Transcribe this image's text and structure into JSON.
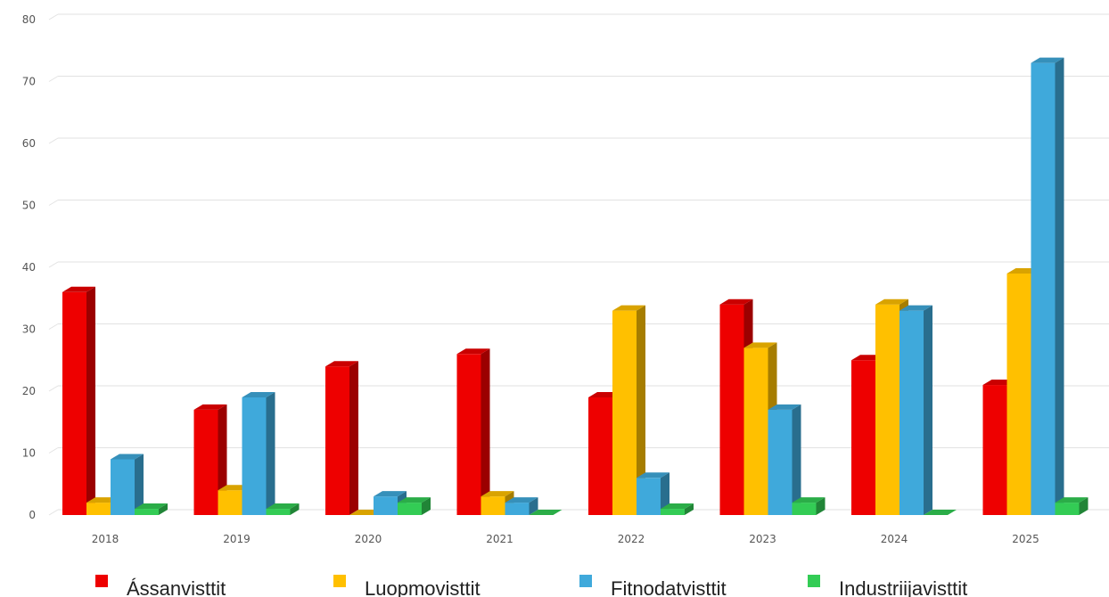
{
  "chart_data": {
    "type": "bar",
    "style": "3d-clustered",
    "categories": [
      "2018",
      "2019",
      "2020",
      "2021",
      "2022",
      "2023",
      "2024",
      "2025"
    ],
    "series": [
      {
        "name": "Ássanvisttit",
        "color": "#ee0000",
        "values": [
          36,
          17,
          24,
          26,
          19,
          34,
          25,
          21
        ]
      },
      {
        "name": "Luopmovisttit",
        "color": "#ffc000",
        "values": [
          2,
          4,
          0,
          3,
          33,
          27,
          34,
          39
        ]
      },
      {
        "name": "Fitnodatvisttit",
        "color": "#3fa9db",
        "values": [
          9,
          19,
          3,
          2,
          6,
          17,
          33,
          73
        ]
      },
      {
        "name": "Industriijavisttit",
        "color": "#33cc55",
        "values": [
          1,
          1,
          2,
          0,
          1,
          2,
          0,
          2
        ]
      }
    ],
    "y_ticks": [
      "0",
      "10",
      "20",
      "30",
      "40",
      "50",
      "60",
      "70",
      "80"
    ],
    "ylim": [
      0,
      80
    ],
    "title": "",
    "xlabel": "",
    "ylabel": "",
    "grid": true,
    "legend_position": "bottom"
  }
}
